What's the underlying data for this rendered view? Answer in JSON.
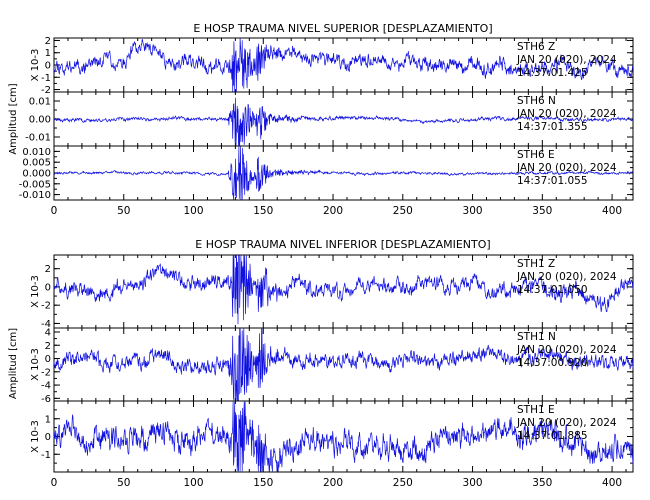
{
  "chart_data": [
    {
      "type": "line",
      "title": "E HOSP TRAUMA NIVEL SUPERIOR [DESPLAZAMIENTO]",
      "ylabel": "Amplitud [cm]",
      "xticks": [
        "0",
        "50",
        "100",
        "150",
        "200",
        "250",
        "300",
        "350",
        "400"
      ],
      "xlim": [
        0,
        415
      ],
      "traces": [
        {
          "station": "STH6",
          "component": "Z",
          "date": "JAN 20 (020), 2024",
          "time": "14:37:01.425",
          "scale_label": "X 10-3",
          "ylim": [
            -2.2,
            2.2
          ],
          "yticks": [
            {
              "v": 2,
              "l": "2"
            },
            {
              "v": 1,
              "l": "1"
            },
            {
              "v": 0,
              "l": "0"
            },
            {
              "v": -1,
              "l": "-1"
            },
            {
              "v": -2,
              "l": "-2"
            }
          ],
          "noise": 0.45,
          "event_peak": 2.1,
          "long_period": 0.5,
          "seed": 11,
          "color": "#1010e0"
        },
        {
          "station": "STH6",
          "component": "N",
          "date": "JAN 20 (020), 2024",
          "time": "14:37:01.355",
          "scale_label": "",
          "ylim": [
            -0.015,
            0.015
          ],
          "yticks": [
            {
              "v": 0.01,
              "l": "0.01"
            },
            {
              "v": 0,
              "l": "0.00"
            },
            {
              "v": -0.01,
              "l": "-0.01"
            }
          ],
          "noise": 0.0008,
          "event_peak": 0.013,
          "long_period": 0.0005,
          "seed": 23,
          "color": "#1010e0"
        },
        {
          "station": "STH6",
          "component": "E",
          "date": "JAN 20 (020), 2024",
          "time": "14:37:01.055",
          "scale_label": "",
          "ylim": [
            -0.0125,
            0.0125
          ],
          "yticks": [
            {
              "v": 0.01,
              "l": "0.010"
            },
            {
              "v": 0.005,
              "l": "0.005"
            },
            {
              "v": 0,
              "l": "0.000"
            },
            {
              "v": -0.005,
              "l": "-0.005"
            },
            {
              "v": -0.01,
              "l": "-0.010"
            }
          ],
          "noise": 0.0005,
          "event_peak": 0.011,
          "long_period": 0.0003,
          "seed": 37,
          "color": "#1010e0"
        }
      ]
    },
    {
      "type": "line",
      "title": "E HOSP TRAUMA NIVEL INFERIOR [DESPLAZAMIENTO]",
      "ylabel": "Amplitud [cm]",
      "xticks": [
        "0",
        "50",
        "100",
        "150",
        "200",
        "250",
        "300",
        "350",
        "400"
      ],
      "xlim": [
        0,
        415
      ],
      "traces": [
        {
          "station": "STH1",
          "component": "Z",
          "date": "JAN 20 (020), 2024",
          "time": "14:37:01.050",
          "scale_label": "X 10-3",
          "ylim": [
            -4.5,
            3.5
          ],
          "yticks": [
            {
              "v": 2,
              "l": "2"
            },
            {
              "v": 0,
              "l": "0"
            },
            {
              "v": -2,
              "l": "-2"
            },
            {
              "v": -4,
              "l": "-4"
            }
          ],
          "noise": 0.7,
          "event_peak": 4.2,
          "long_period": 0.7,
          "seed": 51,
          "color": "#1010e0"
        },
        {
          "station": "STH1",
          "component": "N",
          "date": "JAN 20 (020), 2024",
          "time": "14:37:00.920",
          "scale_label": "X 10-3",
          "ylim": [
            -6.4,
            4.6
          ],
          "yticks": [
            {
              "v": 4,
              "l": "4"
            },
            {
              "v": 2,
              "l": "2"
            },
            {
              "v": 0,
              "l": "0"
            },
            {
              "v": -2,
              "l": "-2"
            },
            {
              "v": -4,
              "l": "-4"
            },
            {
              "v": -6,
              "l": "-6"
            }
          ],
          "noise": 0.9,
          "event_peak": 5.8,
          "long_period": 0.7,
          "seed": 67,
          "color": "#1010e0"
        },
        {
          "station": "STH1",
          "component": "E",
          "date": "JAN 20 (020), 2024",
          "time": "14:37:01.885",
          "scale_label": "X 10-3",
          "ylim": [
            -2.0,
            2.0
          ],
          "yticks": [
            {
              "v": 1,
              "l": "1"
            },
            {
              "v": 0,
              "l": "0"
            },
            {
              "v": -1,
              "l": "-1"
            }
          ],
          "noise": 0.55,
          "event_peak": 1.9,
          "long_period": 0.6,
          "seed": 83,
          "color": "#1010e0"
        }
      ]
    }
  ]
}
